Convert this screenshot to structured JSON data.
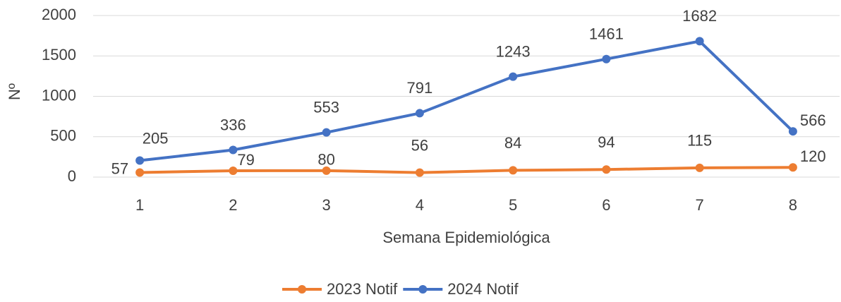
{
  "chart_data": {
    "type": "line",
    "x_label": "Semana Epidemiológica",
    "y_label": "Nº",
    "categories": [
      1,
      2,
      3,
      4,
      5,
      6,
      7,
      8
    ],
    "series": [
      {
        "name": "2023 Notif",
        "color": "#ed7d31",
        "values": [
          57,
          79,
          80,
          56,
          84,
          94,
          115,
          120
        ]
      },
      {
        "name": "2024 Notif",
        "color": "#4472c4",
        "values": [
          205,
          336,
          553,
          791,
          1243,
          1461,
          1682,
          566
        ]
      }
    ],
    "ylim": [
      0,
      2000
    ],
    "yticks": [
      0,
      500,
      1000,
      1500,
      2000
    ],
    "grid": true,
    "legend": "bottom"
  }
}
